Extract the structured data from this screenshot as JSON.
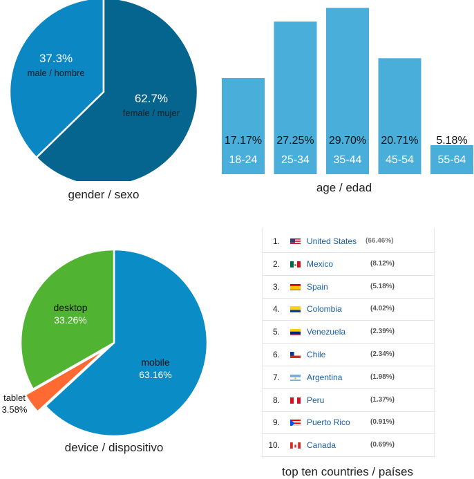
{
  "chart_data": [
    {
      "type": "pie",
      "caption": "gender / sexo",
      "slices": [
        {
          "label": "male / hombre",
          "percent_label": "37.3%",
          "value": 37.3,
          "color": "#0b87c4"
        },
        {
          "label": "female / mujer",
          "percent_label": "62.7%",
          "value": 62.7,
          "color": "#05658f"
        }
      ]
    },
    {
      "type": "bar",
      "caption": "age / edad",
      "categories": [
        "18-24",
        "25-34",
        "35-44",
        "45-54",
        "55-64"
      ],
      "values": [
        17.17,
        27.25,
        29.7,
        20.71,
        5.18
      ],
      "value_labels": [
        "17.17%",
        "27.25%",
        "29.70%",
        "20.71%",
        "5.18%"
      ],
      "color": "#4aaedb",
      "ylim": [
        0,
        30
      ]
    },
    {
      "type": "pie",
      "caption": "device / dispositivo",
      "slices": [
        {
          "label": "mobile",
          "percent_label": "63.16%",
          "value": 63.16,
          "color": "#0a8cc6"
        },
        {
          "label": "tablet",
          "percent_label": "3.58%",
          "value": 3.58,
          "color": "#ff6a33",
          "exploded": true
        },
        {
          "label": "desktop",
          "percent_label": "33.26%",
          "value": 33.26,
          "color": "#50b332"
        }
      ]
    },
    {
      "type": "table",
      "caption": "top ten countries / países",
      "rows": [
        {
          "rank": "1.",
          "country": "United States",
          "percent": "(66.46%)",
          "flag": "us"
        },
        {
          "rank": "2.",
          "country": "Mexico",
          "percent": "(8.12%)",
          "flag": "mx"
        },
        {
          "rank": "3.",
          "country": "Spain",
          "percent": "(5.18%)",
          "flag": "es"
        },
        {
          "rank": "4.",
          "country": "Colombia",
          "percent": "(4.02%)",
          "flag": "co"
        },
        {
          "rank": "5.",
          "country": "Venezuela",
          "percent": "(2.39%)",
          "flag": "ve"
        },
        {
          "rank": "6.",
          "country": "Chile",
          "percent": "(2.34%)",
          "flag": "cl"
        },
        {
          "rank": "7.",
          "country": "Argentina",
          "percent": "(1.98%)",
          "flag": "ar"
        },
        {
          "rank": "8.",
          "country": "Peru",
          "percent": "(1.37%)",
          "flag": "pe"
        },
        {
          "rank": "9.",
          "country": "Puerto Rico",
          "percent": "(0.91%)",
          "flag": "pr"
        },
        {
          "rank": "10.",
          "country": "Canada",
          "percent": "(0.69%)",
          "flag": "ca"
        }
      ]
    }
  ]
}
